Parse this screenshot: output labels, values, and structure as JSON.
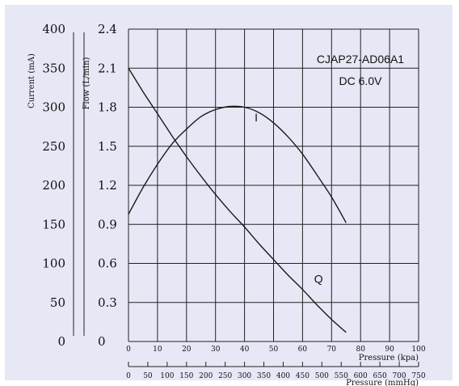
{
  "chart_data": {
    "type": "line",
    "annotation": [
      "CJAP27-AD06A1",
      "DC 6.0V"
    ],
    "xlabel": "Pressure (kpa)",
    "x2label": "Pressure (mmHg)",
    "y_current_label": "Current (mA)",
    "y_flow_label": "Flow (L/min)",
    "xlim": [
      0,
      100
    ],
    "ylim_flow": [
      0,
      2.4
    ],
    "ylim_current": [
      0,
      400
    ],
    "x_ticks": [
      "0",
      "10",
      "20",
      "30",
      "40",
      "50",
      "60",
      "70",
      "80",
      "90",
      "100"
    ],
    "x2_ticks": [
      "0",
      "50",
      "100",
      "150",
      "200",
      "250",
      "300",
      "350",
      "400",
      "450",
      "500",
      "550",
      "600",
      "650",
      "700",
      "750"
    ],
    "y_current_ticks": [
      "0",
      "50",
      "100",
      "150",
      "200",
      "250",
      "300",
      "350",
      "400"
    ],
    "y_flow_ticks": [
      "0",
      "0.3",
      "0.6",
      "0.9",
      "1.2",
      "1.5",
      "1.8",
      "2.1",
      "2.4"
    ],
    "grid": true,
    "series": [
      {
        "name": "Q",
        "axis": "flow",
        "x": [
          0,
          5,
          10,
          15,
          20,
          25,
          30,
          35,
          40,
          45,
          50,
          55,
          60,
          65,
          70,
          75
        ],
        "y": [
          2.1,
          1.92,
          1.75,
          1.58,
          1.42,
          1.27,
          1.13,
          1.0,
          0.88,
          0.75,
          0.63,
          0.51,
          0.4,
          0.28,
          0.17,
          0.07
        ]
      },
      {
        "name": "I",
        "axis": "current",
        "x": [
          0,
          5,
          10,
          15,
          20,
          25,
          30,
          35,
          40,
          45,
          50,
          55,
          60,
          65,
          70,
          75
        ],
        "y": [
          163,
          197,
          227,
          253,
          272,
          288,
          297,
          301,
          300,
          293,
          280,
          262,
          240,
          213,
          185,
          152
        ]
      }
    ]
  }
}
